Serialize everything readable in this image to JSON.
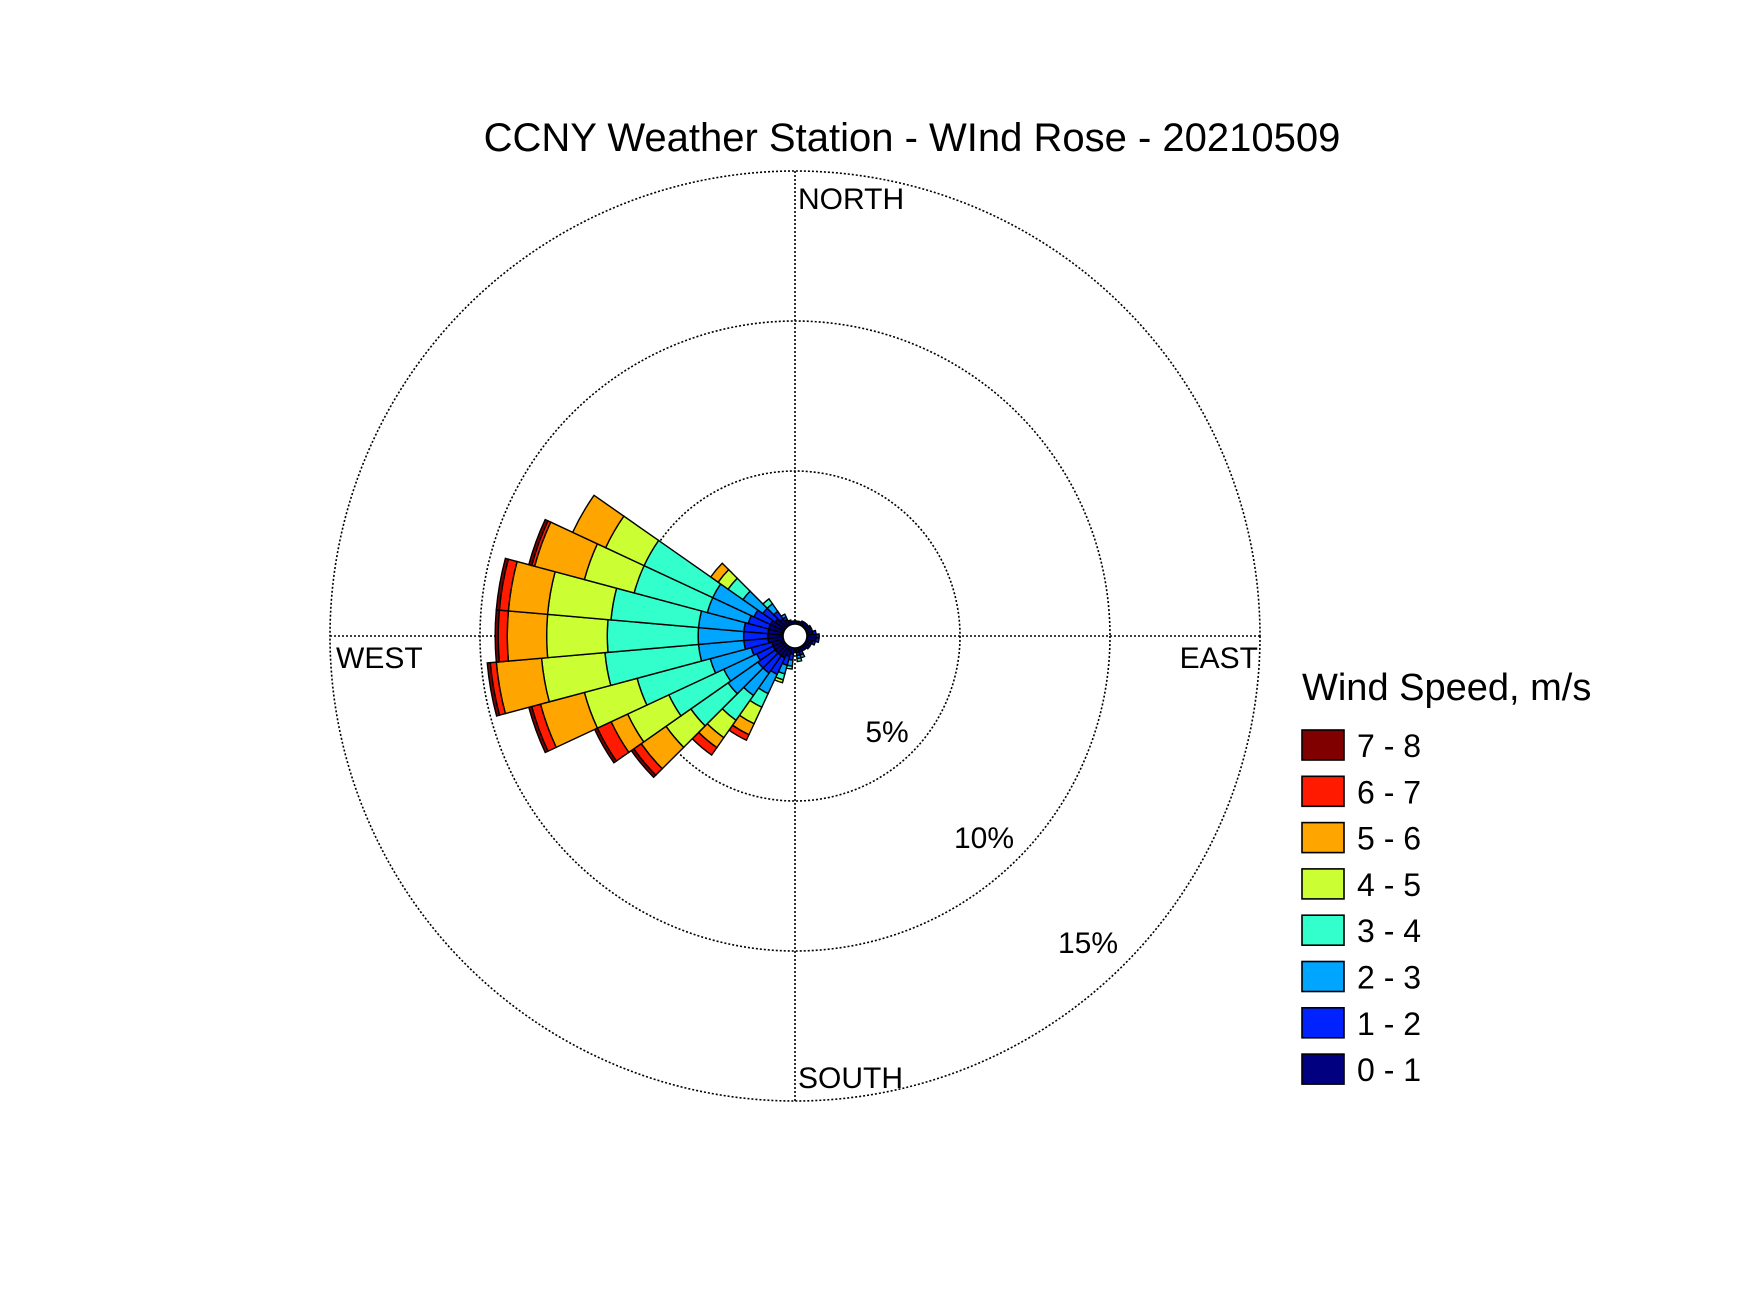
{
  "chart_data": {
    "type": "windrose",
    "title": "CCNY Weather Station - WInd Rose - 20210509",
    "directions": {
      "north": "NORTH",
      "south": "SOUTH",
      "east": "EAST",
      "west": "WEST"
    },
    "ring_labels": [
      "5%",
      "10%",
      "15%"
    ],
    "ring_values": [
      5,
      10,
      15
    ],
    "legend_title": "Wind Speed, m/s",
    "legend_placement": "right",
    "bins": [
      {
        "label": "0 - 1",
        "color": "#000080"
      },
      {
        "label": "1 - 2",
        "color": "#0022ff"
      },
      {
        "label": "2 - 3",
        "color": "#00a5ff"
      },
      {
        "label": "3 - 4",
        "color": "#33ffcc"
      },
      {
        "label": "4 - 5",
        "color": "#ccff33"
      },
      {
        "label": "5 - 6",
        "color": "#ffa500"
      },
      {
        "label": "6 - 7",
        "color": "#ff1a00"
      },
      {
        "label": "7 - 8",
        "color": "#800000"
      }
    ],
    "sector_width_deg": 10,
    "sectors": [
      {
        "dir": 180,
        "freq": [
          0.15,
          0.0,
          0.0,
          0.0,
          0.0,
          0.0,
          0.0,
          0.0
        ]
      },
      {
        "dir": 190,
        "freq": [
          0.2,
          0.2,
          0.2,
          0.1,
          0.0,
          0.0,
          0.0,
          0.0
        ]
      },
      {
        "dir": 200,
        "freq": [
          0.3,
          0.3,
          0.3,
          0.2,
          0.1,
          0.0,
          0.0,
          0.0
        ]
      },
      {
        "dir": 210,
        "freq": [
          0.4,
          0.6,
          0.7,
          0.5,
          0.6,
          0.4,
          0.2,
          0.0
        ]
      },
      {
        "dir": 220,
        "freq": [
          0.4,
          0.7,
          0.9,
          1.0,
          0.7,
          0.4,
          0.3,
          0.0
        ]
      },
      {
        "dir": 230,
        "freq": [
          0.4,
          0.7,
          1.2,
          1.5,
          1.0,
          1.0,
          0.3,
          0.1
        ]
      },
      {
        "dir": 240,
        "freq": [
          0.4,
          0.6,
          1.2,
          2.0,
          1.5,
          0.6,
          0.5,
          0.1
        ]
      },
      {
        "dir": 250,
        "freq": [
          0.4,
          0.7,
          1.4,
          2.5,
          1.8,
          1.5,
          0.3,
          0.1
        ]
      },
      {
        "dir": 260,
        "freq": [
          0.5,
          0.8,
          1.5,
          3.1,
          2.1,
          1.5,
          0.2,
          0.1
        ]
      },
      {
        "dir": 270,
        "freq": [
          0.5,
          0.8,
          1.5,
          3.0,
          2.0,
          1.3,
          0.3,
          0.1
        ]
      },
      {
        "dir": 280,
        "freq": [
          0.5,
          0.8,
          1.5,
          2.9,
          2.1,
          1.3,
          0.3,
          0.1
        ]
      },
      {
        "dir": 290,
        "freq": [
          0.5,
          0.7,
          1.4,
          2.5,
          1.7,
          1.7,
          0.1,
          0.1
        ]
      },
      {
        "dir": 300,
        "freq": [
          0.5,
          0.6,
          1.5,
          2.5,
          1.4,
          1.2,
          0.0,
          0.0
        ]
      },
      {
        "dir": 310,
        "freq": [
          0.4,
          0.5,
          0.8,
          0.6,
          0.4,
          0.3,
          0.0,
          0.0
        ]
      },
      {
        "dir": 320,
        "freq": [
          0.3,
          0.3,
          0.3,
          0.2,
          0.0,
          0.0,
          0.0,
          0.0
        ]
      },
      {
        "dir": 330,
        "freq": [
          0.2,
          0.1,
          0.1,
          0.0,
          0.0,
          0.0,
          0.0,
          0.0
        ]
      },
      {
        "dir": 340,
        "freq": [
          0.15,
          0.0,
          0.0,
          0.0,
          0.0,
          0.0,
          0.0,
          0.0
        ]
      },
      {
        "dir": 350,
        "freq": [
          0.1,
          0.0,
          0.0,
          0.0,
          0.0,
          0.0,
          0.0,
          0.0
        ]
      },
      {
        "dir": 0,
        "freq": [
          0.1,
          0.0,
          0.0,
          0.0,
          0.0,
          0.0,
          0.0,
          0.0
        ]
      },
      {
        "dir": 10,
        "freq": [
          0.1,
          0.0,
          0.0,
          0.0,
          0.0,
          0.0,
          0.0,
          0.0
        ]
      },
      {
        "dir": 20,
        "freq": [
          0.1,
          0.0,
          0.0,
          0.0,
          0.0,
          0.0,
          0.0,
          0.0
        ]
      },
      {
        "dir": 30,
        "freq": [
          0.15,
          0.0,
          0.0,
          0.0,
          0.0,
          0.0,
          0.0,
          0.0
        ]
      },
      {
        "dir": 40,
        "freq": [
          0.15,
          0.0,
          0.0,
          0.0,
          0.0,
          0.0,
          0.0,
          0.0
        ]
      },
      {
        "dir": 50,
        "freq": [
          0.15,
          0.0,
          0.0,
          0.0,
          0.0,
          0.0,
          0.0,
          0.0
        ]
      },
      {
        "dir": 60,
        "freq": [
          0.2,
          0.0,
          0.0,
          0.0,
          0.0,
          0.0,
          0.0,
          0.0
        ]
      },
      {
        "dir": 70,
        "freq": [
          0.2,
          0.0,
          0.0,
          0.0,
          0.0,
          0.0,
          0.0,
          0.0
        ]
      },
      {
        "dir": 80,
        "freq": [
          0.2,
          0.1,
          0.0,
          0.0,
          0.0,
          0.0,
          0.0,
          0.0
        ]
      },
      {
        "dir": 90,
        "freq": [
          0.3,
          0.1,
          0.0,
          0.0,
          0.0,
          0.0,
          0.0,
          0.0
        ]
      },
      {
        "dir": 100,
        "freq": [
          0.3,
          0.1,
          0.0,
          0.0,
          0.0,
          0.0,
          0.0,
          0.0
        ]
      },
      {
        "dir": 110,
        "freq": [
          0.2,
          0.1,
          0.0,
          0.0,
          0.0,
          0.0,
          0.0,
          0.0
        ]
      },
      {
        "dir": 120,
        "freq": [
          0.2,
          0.0,
          0.0,
          0.0,
          0.0,
          0.0,
          0.0,
          0.0
        ]
      },
      {
        "dir": 130,
        "freq": [
          0.2,
          0.0,
          0.0,
          0.0,
          0.0,
          0.0,
          0.0,
          0.0
        ]
      },
      {
        "dir": 140,
        "freq": [
          0.15,
          0.0,
          0.0,
          0.0,
          0.0,
          0.0,
          0.0,
          0.0
        ]
      },
      {
        "dir": 150,
        "freq": [
          0.15,
          0.0,
          0.0,
          0.0,
          0.0,
          0.0,
          0.0,
          0.0
        ]
      },
      {
        "dir": 160,
        "freq": [
          0.15,
          0.1,
          0.1,
          0.0,
          0.0,
          0.0,
          0.0,
          0.0
        ]
      },
      {
        "dir": 170,
        "freq": [
          0.15,
          0.1,
          0.1,
          0.1,
          0.0,
          0.0,
          0.0,
          0.0
        ]
      }
    ]
  }
}
